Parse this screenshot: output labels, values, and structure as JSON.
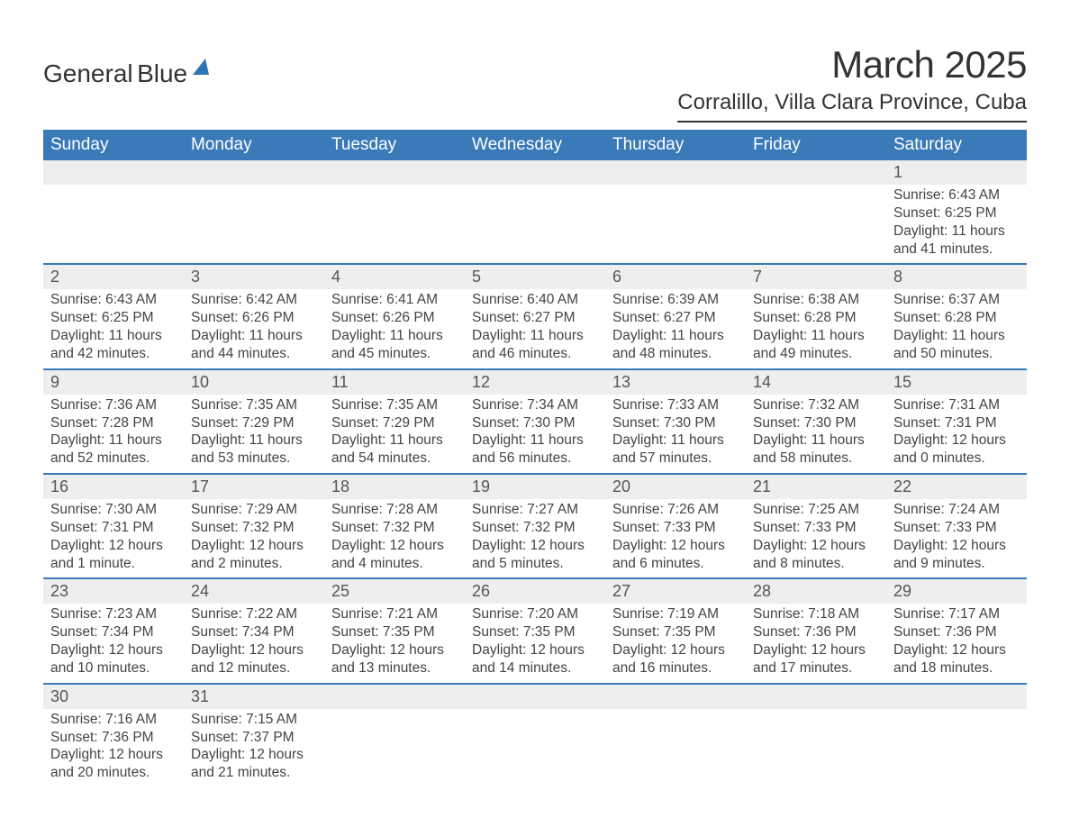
{
  "brand": {
    "name1": "General",
    "name2": "Blue"
  },
  "title": "March 2025",
  "location": "Corralillo, Villa Clara Province, Cuba",
  "colors": {
    "header_bg": "#3a7ab8",
    "header_fg": "#ffffff",
    "row_border": "#3a7ab8",
    "daynum_bg": "#eeeeee",
    "text": "#444444",
    "brand_blue": "#2e75b6"
  },
  "days_of_week": [
    "Sunday",
    "Monday",
    "Tuesday",
    "Wednesday",
    "Thursday",
    "Friday",
    "Saturday"
  ],
  "weeks": [
    {
      "nums": [
        "",
        "",
        "",
        "",
        "",
        "",
        "1"
      ],
      "cells": [
        null,
        null,
        null,
        null,
        null,
        null,
        {
          "sunrise": "Sunrise: 6:43 AM",
          "sunset": "Sunset: 6:25 PM",
          "d1": "Daylight: 11 hours",
          "d2": "and 41 minutes."
        }
      ]
    },
    {
      "nums": [
        "2",
        "3",
        "4",
        "5",
        "6",
        "7",
        "8"
      ],
      "cells": [
        {
          "sunrise": "Sunrise: 6:43 AM",
          "sunset": "Sunset: 6:25 PM",
          "d1": "Daylight: 11 hours",
          "d2": "and 42 minutes."
        },
        {
          "sunrise": "Sunrise: 6:42 AM",
          "sunset": "Sunset: 6:26 PM",
          "d1": "Daylight: 11 hours",
          "d2": "and 44 minutes."
        },
        {
          "sunrise": "Sunrise: 6:41 AM",
          "sunset": "Sunset: 6:26 PM",
          "d1": "Daylight: 11 hours",
          "d2": "and 45 minutes."
        },
        {
          "sunrise": "Sunrise: 6:40 AM",
          "sunset": "Sunset: 6:27 PM",
          "d1": "Daylight: 11 hours",
          "d2": "and 46 minutes."
        },
        {
          "sunrise": "Sunrise: 6:39 AM",
          "sunset": "Sunset: 6:27 PM",
          "d1": "Daylight: 11 hours",
          "d2": "and 48 minutes."
        },
        {
          "sunrise": "Sunrise: 6:38 AM",
          "sunset": "Sunset: 6:28 PM",
          "d1": "Daylight: 11 hours",
          "d2": "and 49 minutes."
        },
        {
          "sunrise": "Sunrise: 6:37 AM",
          "sunset": "Sunset: 6:28 PM",
          "d1": "Daylight: 11 hours",
          "d2": "and 50 minutes."
        }
      ]
    },
    {
      "nums": [
        "9",
        "10",
        "11",
        "12",
        "13",
        "14",
        "15"
      ],
      "cells": [
        {
          "sunrise": "Sunrise: 7:36 AM",
          "sunset": "Sunset: 7:28 PM",
          "d1": "Daylight: 11 hours",
          "d2": "and 52 minutes."
        },
        {
          "sunrise": "Sunrise: 7:35 AM",
          "sunset": "Sunset: 7:29 PM",
          "d1": "Daylight: 11 hours",
          "d2": "and 53 minutes."
        },
        {
          "sunrise": "Sunrise: 7:35 AM",
          "sunset": "Sunset: 7:29 PM",
          "d1": "Daylight: 11 hours",
          "d2": "and 54 minutes."
        },
        {
          "sunrise": "Sunrise: 7:34 AM",
          "sunset": "Sunset: 7:30 PM",
          "d1": "Daylight: 11 hours",
          "d2": "and 56 minutes."
        },
        {
          "sunrise": "Sunrise: 7:33 AM",
          "sunset": "Sunset: 7:30 PM",
          "d1": "Daylight: 11 hours",
          "d2": "and 57 minutes."
        },
        {
          "sunrise": "Sunrise: 7:32 AM",
          "sunset": "Sunset: 7:30 PM",
          "d1": "Daylight: 11 hours",
          "d2": "and 58 minutes."
        },
        {
          "sunrise": "Sunrise: 7:31 AM",
          "sunset": "Sunset: 7:31 PM",
          "d1": "Daylight: 12 hours",
          "d2": "and 0 minutes."
        }
      ]
    },
    {
      "nums": [
        "16",
        "17",
        "18",
        "19",
        "20",
        "21",
        "22"
      ],
      "cells": [
        {
          "sunrise": "Sunrise: 7:30 AM",
          "sunset": "Sunset: 7:31 PM",
          "d1": "Daylight: 12 hours",
          "d2": "and 1 minute."
        },
        {
          "sunrise": "Sunrise: 7:29 AM",
          "sunset": "Sunset: 7:32 PM",
          "d1": "Daylight: 12 hours",
          "d2": "and 2 minutes."
        },
        {
          "sunrise": "Sunrise: 7:28 AM",
          "sunset": "Sunset: 7:32 PM",
          "d1": "Daylight: 12 hours",
          "d2": "and 4 minutes."
        },
        {
          "sunrise": "Sunrise: 7:27 AM",
          "sunset": "Sunset: 7:32 PM",
          "d1": "Daylight: 12 hours",
          "d2": "and 5 minutes."
        },
        {
          "sunrise": "Sunrise: 7:26 AM",
          "sunset": "Sunset: 7:33 PM",
          "d1": "Daylight: 12 hours",
          "d2": "and 6 minutes."
        },
        {
          "sunrise": "Sunrise: 7:25 AM",
          "sunset": "Sunset: 7:33 PM",
          "d1": "Daylight: 12 hours",
          "d2": "and 8 minutes."
        },
        {
          "sunrise": "Sunrise: 7:24 AM",
          "sunset": "Sunset: 7:33 PM",
          "d1": "Daylight: 12 hours",
          "d2": "and 9 minutes."
        }
      ]
    },
    {
      "nums": [
        "23",
        "24",
        "25",
        "26",
        "27",
        "28",
        "29"
      ],
      "cells": [
        {
          "sunrise": "Sunrise: 7:23 AM",
          "sunset": "Sunset: 7:34 PM",
          "d1": "Daylight: 12 hours",
          "d2": "and 10 minutes."
        },
        {
          "sunrise": "Sunrise: 7:22 AM",
          "sunset": "Sunset: 7:34 PM",
          "d1": "Daylight: 12 hours",
          "d2": "and 12 minutes."
        },
        {
          "sunrise": "Sunrise: 7:21 AM",
          "sunset": "Sunset: 7:35 PM",
          "d1": "Daylight: 12 hours",
          "d2": "and 13 minutes."
        },
        {
          "sunrise": "Sunrise: 7:20 AM",
          "sunset": "Sunset: 7:35 PM",
          "d1": "Daylight: 12 hours",
          "d2": "and 14 minutes."
        },
        {
          "sunrise": "Sunrise: 7:19 AM",
          "sunset": "Sunset: 7:35 PM",
          "d1": "Daylight: 12 hours",
          "d2": "and 16 minutes."
        },
        {
          "sunrise": "Sunrise: 7:18 AM",
          "sunset": "Sunset: 7:36 PM",
          "d1": "Daylight: 12 hours",
          "d2": "and 17 minutes."
        },
        {
          "sunrise": "Sunrise: 7:17 AM",
          "sunset": "Sunset: 7:36 PM",
          "d1": "Daylight: 12 hours",
          "d2": "and 18 minutes."
        }
      ]
    },
    {
      "nums": [
        "30",
        "31",
        "",
        "",
        "",
        "",
        ""
      ],
      "cells": [
        {
          "sunrise": "Sunrise: 7:16 AM",
          "sunset": "Sunset: 7:36 PM",
          "d1": "Daylight: 12 hours",
          "d2": "and 20 minutes."
        },
        {
          "sunrise": "Sunrise: 7:15 AM",
          "sunset": "Sunset: 7:37 PM",
          "d1": "Daylight: 12 hours",
          "d2": "and 21 minutes."
        },
        null,
        null,
        null,
        null,
        null
      ]
    }
  ]
}
